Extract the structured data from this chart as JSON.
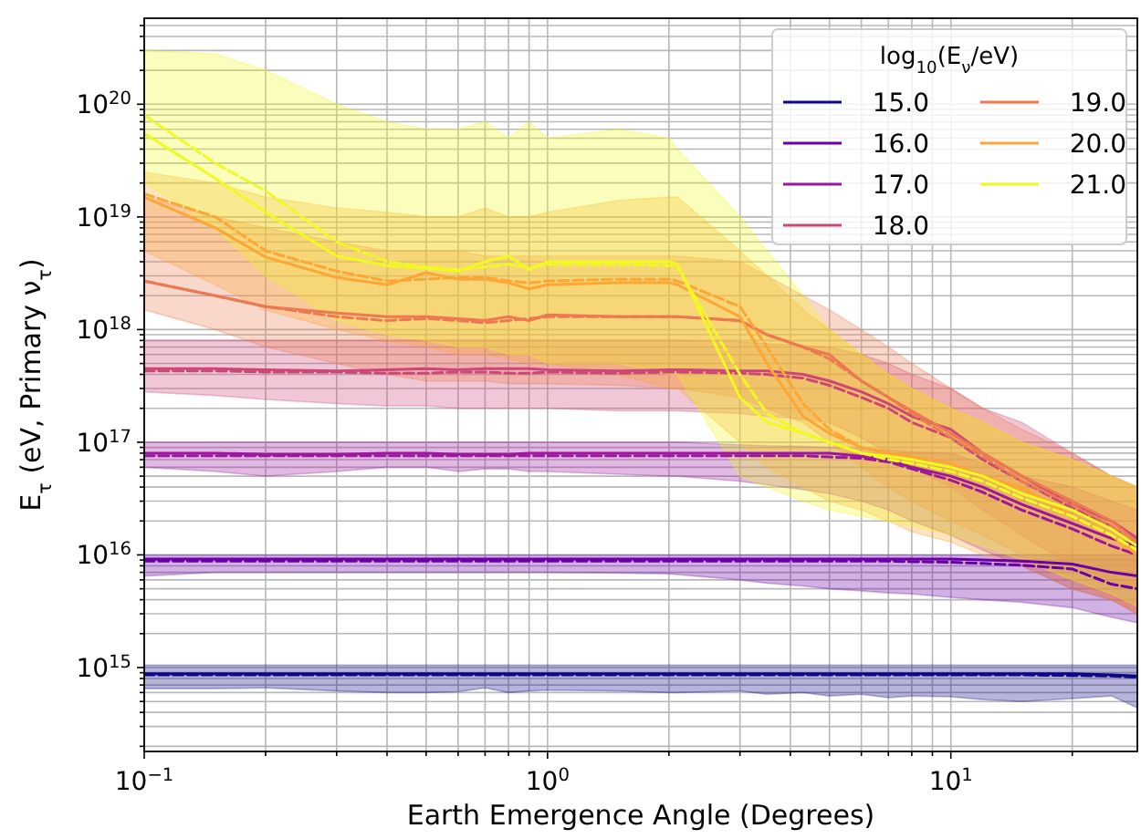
{
  "chart_data": {
    "type": "line",
    "xlabel": "Earth Emergence Angle (Degrees)",
    "ylabel": "E$_{τ}$ (eV, Primary ν$_{τ}$)",
    "legend_title": "log$_{10}$(E$_{ν}$/eV)",
    "legend": "top right",
    "grid": true,
    "log": "xy",
    "xlim": [
      0.1,
      29
    ],
    "ylim": [
      180000000000000.0,
      5.8e+20
    ],
    "xticks": [
      {
        "value": 0.1,
        "label": "10$^{−1}$"
      },
      {
        "value": 0.2,
        "label": null
      },
      {
        "value": 0.3,
        "label": null
      },
      {
        "value": 0.4,
        "label": null
      },
      {
        "value": 0.5,
        "label": null
      },
      {
        "value": 0.6,
        "label": null
      },
      {
        "value": 0.7,
        "label": null
      },
      {
        "value": 0.8,
        "label": null
      },
      {
        "value": 0.9,
        "label": null
      },
      {
        "value": 1,
        "label": "10$^{0}$"
      },
      {
        "value": 2,
        "label": null
      },
      {
        "value": 3,
        "label": null
      },
      {
        "value": 4,
        "label": null
      },
      {
        "value": 5,
        "label": null
      },
      {
        "value": 6,
        "label": null
      },
      {
        "value": 7,
        "label": null
      },
      {
        "value": 8,
        "label": null
      },
      {
        "value": 9,
        "label": null
      },
      {
        "value": 10,
        "label": "10$^{1}$"
      },
      {
        "value": 20,
        "label": null
      }
    ],
    "yticks": [
      {
        "value": 200000000000000.0,
        "label": null
      },
      {
        "value": 300000000000000.0,
        "label": null
      },
      {
        "value": 400000000000000.0,
        "label": null
      },
      {
        "value": 500000000000000.0,
        "label": null
      },
      {
        "value": 600000000000000.0,
        "label": null
      },
      {
        "value": 700000000000000.0,
        "label": null
      },
      {
        "value": 800000000000000.0,
        "label": null
      },
      {
        "value": 900000000000000.0,
        "label": null
      },
      {
        "value": 1000000000000000.0,
        "label": "10$^{15}$"
      },
      {
        "value": 2000000000000000.0,
        "label": null
      },
      {
        "value": 3000000000000000.0,
        "label": null
      },
      {
        "value": 4000000000000000.0,
        "label": null
      },
      {
        "value": 5000000000000000.0,
        "label": null
      },
      {
        "value": 6000000000000000.0,
        "label": null
      },
      {
        "value": 7000000000000000.0,
        "label": null
      },
      {
        "value": 8000000000000000.0,
        "label": null
      },
      {
        "value": 9000000000000000.0,
        "label": null
      },
      {
        "value": 1e+16,
        "label": "10$^{16}$"
      },
      {
        "value": 2e+16,
        "label": null
      },
      {
        "value": 3e+16,
        "label": null
      },
      {
        "value": 4e+16,
        "label": null
      },
      {
        "value": 5e+16,
        "label": null
      },
      {
        "value": 6e+16,
        "label": null
      },
      {
        "value": 7e+16,
        "label": null
      },
      {
        "value": 8e+16,
        "label": null
      },
      {
        "value": 9e+16,
        "label": null
      },
      {
        "value": 1e+17,
        "label": "10$^{17}$"
      },
      {
        "value": 2e+17,
        "label": null
      },
      {
        "value": 3e+17,
        "label": null
      },
      {
        "value": 4e+17,
        "label": null
      },
      {
        "value": 5e+17,
        "label": null
      },
      {
        "value": 6e+17,
        "label": null
      },
      {
        "value": 7e+17,
        "label": null
      },
      {
        "value": 8e+17,
        "label": null
      },
      {
        "value": 9e+17,
        "label": null
      },
      {
        "value": 1e+18,
        "label": "10$^{18}$"
      },
      {
        "value": 2e+18,
        "label": null
      },
      {
        "value": 3e+18,
        "label": null
      },
      {
        "value": 4e+18,
        "label": null
      },
      {
        "value": 5e+18,
        "label": null
      },
      {
        "value": 6e+18,
        "label": null
      },
      {
        "value": 7e+18,
        "label": null
      },
      {
        "value": 8e+18,
        "label": null
      },
      {
        "value": 9e+18,
        "label": null
      },
      {
        "value": 1e+19,
        "label": "10$^{19}$"
      },
      {
        "value": 2e+19,
        "label": null
      },
      {
        "value": 3e+19,
        "label": null
      },
      {
        "value": 4e+19,
        "label": null
      },
      {
        "value": 5e+19,
        "label": null
      },
      {
        "value": 6e+19,
        "label": null
      },
      {
        "value": 7e+19,
        "label": null
      },
      {
        "value": 8e+19,
        "label": null
      },
      {
        "value": 9e+19,
        "label": null
      },
      {
        "value": 1e+20,
        "label": "10$^{20}$"
      },
      {
        "value": 2e+20,
        "label": null
      },
      {
        "value": 3e+20,
        "label": null
      },
      {
        "value": 4e+20,
        "label": null
      },
      {
        "value": 5e+20,
        "label": null
      }
    ],
    "x": [
      0.1,
      0.15,
      0.2,
      0.3,
      0.4,
      0.5,
      0.6,
      0.7,
      0.8,
      0.9,
      1,
      1.5,
      2,
      2.1,
      3,
      3.5,
      4.3,
      5,
      6,
      7,
      8,
      10,
      12,
      15,
      20,
      25,
      29
    ],
    "series": [
      {
        "name": "15.0",
        "color": "#0d0887",
        "values": [
          880000000000000.0,
          880000000000000.0,
          880000000000000.0,
          880000000000000.0,
          880000000000000.0,
          880000000000000.0,
          880000000000000.0,
          880000000000000.0,
          880000000000000.0,
          880000000000000.0,
          880000000000000.0,
          880000000000000.0,
          880000000000000.0,
          880000000000000.0,
          880000000000000.0,
          880000000000000.0,
          880000000000000.0,
          880000000000000.0,
          880000000000000.0,
          880000000000000.0,
          880000000000000.0,
          880000000000000.0,
          880000000000000.0,
          880000000000000.0,
          880000000000000.0,
          860000000000000.0,
          840000000000000.0
        ],
        "lower": [
          650000000000000.0,
          650000000000000.0,
          660000000000000.0,
          620000000000000.0,
          600000000000000.0,
          600000000000000.0,
          610000000000000.0,
          660000000000000.0,
          600000000000000.0,
          620000000000000.0,
          630000000000000.0,
          620000000000000.0,
          600000000000000.0,
          600000000000000.0,
          620000000000000.0,
          580000000000000.0,
          600000000000000.0,
          560000000000000.0,
          580000000000000.0,
          540000000000000.0,
          560000000000000.0,
          550000000000000.0,
          520000000000000.0,
          500000000000000.0,
          530000000000000.0,
          560000000000000.0,
          440000000000000.0
        ],
        "upper": [
          1050000000000000.0,
          1050000000000000.0,
          1050000000000000.0,
          1050000000000000.0,
          1050000000000000.0,
          1050000000000000.0,
          1050000000000000.0,
          1050000000000000.0,
          1050000000000000.0,
          1050000000000000.0,
          1050000000000000.0,
          1050000000000000.0,
          1050000000000000.0,
          1050000000000000.0,
          1050000000000000.0,
          1050000000000000.0,
          1050000000000000.0,
          1050000000000000.0,
          1050000000000000.0,
          1050000000000000.0,
          1050000000000000.0,
          1050000000000000.0,
          1050000000000000.0,
          1050000000000000.0,
          1050000000000000.0,
          1050000000000000.0,
          1050000000000000.0
        ]
      },
      {
        "color": "#0d0887",
        "line_style": "dashed",
        "values": [
          860000000000000.0,
          860000000000000.0,
          860000000000000.0,
          860000000000000.0,
          860000000000000.0,
          860000000000000.0,
          860000000000000.0,
          860000000000000.0,
          860000000000000.0,
          860000000000000.0,
          860000000000000.0,
          860000000000000.0,
          860000000000000.0,
          860000000000000.0,
          860000000000000.0,
          860000000000000.0,
          860000000000000.0,
          860000000000000.0,
          860000000000000.0,
          860000000000000.0,
          860000000000000.0,
          860000000000000.0,
          860000000000000.0,
          860000000000000.0,
          850000000000000.0,
          840000000000000.0,
          820000000000000.0
        ]
      },
      {
        "name": "16.0",
        "color": "#6a00a8",
        "values": [
          9200000000000000.0,
          9200000000000000.0,
          9200000000000000.0,
          9200000000000000.0,
          9200000000000000.0,
          9200000000000000.0,
          9200000000000000.0,
          9200000000000000.0,
          9200000000000000.0,
          9200000000000000.0,
          9200000000000000.0,
          9200000000000000.0,
          9200000000000000.0,
          9200000000000000.0,
          9200000000000000.0,
          9200000000000000.0,
          9200000000000000.0,
          9200000000000000.0,
          9200000000000000.0,
          9200000000000000.0,
          9200000000000000.0,
          9200000000000000.0,
          9000000000000000.0,
          8800000000000000.0,
          8300000000000000.0,
          7000000000000000.0,
          6500000000000000.0
        ],
        "lower": [
          6500000000000000.0,
          7000000000000000.0,
          7000000000000000.0,
          7000000000000000.0,
          7000000000000000.0,
          7000000000000000.0,
          7000000000000000.0,
          7000000000000000.0,
          7000000000000000.0,
          7000000000000000.0,
          7000000000000000.0,
          6900000000000000.0,
          6800000000000000.0,
          6700000000000000.0,
          6000000000000000.0,
          5600000000000000.0,
          5300000000000000.0,
          5000000000000000.0,
          4800000000000000.0,
          4600000000000000.0,
          4500000000000000.0,
          4200000000000000.0,
          4000000000000000.0,
          3800000000000000.0,
          3400000000000000.0,
          2800000000000000.0,
          2500000000000000.0
        ],
        "upper": [
          1e+16,
          1e+16,
          1e+16,
          1e+16,
          1e+16,
          1e+16,
          1e+16,
          1e+16,
          1e+16,
          1e+16,
          1e+16,
          1e+16,
          1e+16,
          1e+16,
          1e+16,
          1e+16,
          1e+16,
          1e+16,
          1e+16,
          1e+16,
          1e+16,
          1e+16,
          1e+16,
          1e+16,
          1e+16,
          1e+16,
          1e+16
        ]
      },
      {
        "color": "#6a00a8",
        "line_style": "dashed",
        "values": [
          8800000000000000.0,
          8800000000000000.0,
          8800000000000000.0,
          8800000000000000.0,
          8800000000000000.0,
          8800000000000000.0,
          8800000000000000.0,
          8800000000000000.0,
          8800000000000000.0,
          8800000000000000.0,
          8800000000000000.0,
          8800000000000000.0,
          8800000000000000.0,
          8800000000000000.0,
          8800000000000000.0,
          8800000000000000.0,
          8800000000000000.0,
          8800000000000000.0,
          8800000000000000.0,
          8800000000000000.0,
          8700000000000000.0,
          8600000000000000.0,
          8400000000000000.0,
          8100000000000000.0,
          7500000000000000.0,
          5500000000000000.0,
          5000000000000000.0
        ]
      },
      {
        "name": "17.0",
        "color": "#9c179e",
        "values": [
          8e+16,
          8e+16,
          7.8e+16,
          7.8e+16,
          8e+16,
          8e+16,
          7.8e+16,
          7.8e+16,
          7.8e+16,
          8e+16,
          8e+16,
          8e+16,
          8e+16,
          8e+16,
          8e+16,
          8e+16,
          8e+16,
          8e+16,
          7.5e+16,
          7e+16,
          6e+16,
          5e+16,
          4e+16,
          2.8e+16,
          1.9e+16,
          1.4e+16,
          1.2e+16
        ],
        "lower": [
          6e+16,
          5.5e+16,
          5e+16,
          5.5e+16,
          6e+16,
          6e+16,
          5.5e+16,
          5.8e+16,
          5.8e+16,
          5.5e+16,
          5.5e+16,
          5.2e+16,
          5e+16,
          5e+16,
          4.5e+16,
          4.2e+16,
          3.8e+16,
          3.5e+16,
          3e+16,
          2.5e+16,
          2e+16,
          1.5e+16,
          1.1e+16,
          8000000000000000.0,
          5000000000000000.0,
          4000000000000000.0,
          3000000000000000.0
        ],
        "upper": [
          1e+17,
          1e+17,
          1e+17,
          1e+17,
          1e+17,
          1e+17,
          1e+17,
          1e+17,
          1e+17,
          1e+17,
          1e+17,
          1e+17,
          1e+17,
          1e+17,
          9.5e+16,
          9.3e+16,
          9.2e+16,
          9e+16,
          8.8e+16,
          8.5e+16,
          8.2e+16,
          8e+16,
          6.5e+16,
          5e+16,
          4e+16,
          3e+16,
          2.5e+16
        ]
      },
      {
        "color": "#9c179e",
        "line_style": "dashed",
        "values": [
          7.6e+16,
          7.6e+16,
          7.6e+16,
          7.6e+16,
          7.6e+16,
          7.6e+16,
          7.6e+16,
          7.6e+16,
          7.6e+16,
          7.6e+16,
          7.6e+16,
          7.6e+16,
          7.6e+16,
          7.6e+16,
          7.6e+16,
          7.6e+16,
          7.6e+16,
          7.4e+16,
          7.2e+16,
          6.7e+16,
          5.8e+16,
          4.6e+16,
          3.6e+16,
          2.5e+16,
          1.7e+16,
          1.2e+16,
          1e+16
        ]
      },
      {
        "name": "18.0",
        "color": "#cc4778",
        "values": [
          4.5e+17,
          4.5e+17,
          4.4e+17,
          4.3e+17,
          4.4e+17,
          4.5e+17,
          4.4e+17,
          4.5e+17,
          4.5e+17,
          4.5e+17,
          4.4e+17,
          4.3e+17,
          4.4e+17,
          4.4e+17,
          4.3e+17,
          4.3e+17,
          4e+17,
          3.5e+17,
          2.8e+17,
          2.2e+17,
          1.7e+17,
          1.3e+17,
          8e+16,
          5e+16,
          2.8e+16,
          2e+16,
          1.4e+16
        ],
        "lower": [
          2.8e+17,
          2.6e+17,
          2.4e+17,
          2.2e+17,
          2.1e+17,
          2.1e+17,
          2e+17,
          2e+17,
          2e+17,
          2e+17,
          2e+17,
          1.9e+17,
          1.9e+17,
          1.9e+17,
          1.8e+17,
          1.7e+17,
          1.6e+17,
          1.5e+17,
          1.1e+17,
          8e+16,
          6e+16,
          4e+16,
          2.5e+16,
          1.5e+16,
          8000000000000000.0,
          6000000000000000.0,
          5000000000000000.0
        ],
        "upper": [
          8e+17,
          8e+17,
          8e+17,
          8e+17,
          8e+17,
          8e+17,
          8e+17,
          8e+17,
          8e+17,
          8e+17,
          8e+17,
          8e+17,
          8e+17,
          8e+17,
          7.8e+17,
          7.5e+17,
          7.2e+17,
          7e+17,
          6e+17,
          5e+17,
          4e+17,
          3e+17,
          2e+17,
          1.5e+17,
          8e+16,
          5e+16,
          4e+16
        ]
      },
      {
        "color": "#cc4778",
        "line_style": "dashed",
        "values": [
          4.3e+17,
          4.3e+17,
          4.2e+17,
          4.2e+17,
          4.1e+17,
          4.1e+17,
          4.2e+17,
          4.2e+17,
          4.1e+17,
          4.1e+17,
          4.2e+17,
          4.1e+17,
          4.2e+17,
          4.2e+17,
          4.1e+17,
          4e+17,
          3.7e+17,
          3.2e+17,
          2.5e+17,
          2e+17,
          1.5e+17,
          1.1e+17,
          7e+16,
          4.5e+16,
          2.6e+16,
          1.8e+16,
          1.2e+16
        ]
      },
      {
        "name": "19.0",
        "color": "#ed7953",
        "values": [
          2.7e+18,
          2e+18,
          1.6e+18,
          1.4e+18,
          1.3e+18,
          1.3e+18,
          1.25e+18,
          1.2e+18,
          1.3e+18,
          1.2e+18,
          1.35e+18,
          1.3e+18,
          1.3e+18,
          1.3e+18,
          1.2e+18,
          9e+17,
          7e+17,
          6e+17,
          3.5e+17,
          2.5e+17,
          1.9e+17,
          1.2e+17,
          8e+16,
          5e+16,
          3e+16,
          2e+16,
          1.3e+16
        ],
        "lower": [
          1.5e+18,
          1e+18,
          7e+17,
          5e+17,
          4e+17,
          3.5e+17,
          3.5e+17,
          3.5e+17,
          3.3e+17,
          3.3e+17,
          3.3e+17,
          3.2e+17,
          3e+17,
          3e+17,
          2.5e+17,
          2e+17,
          1.5e+17,
          1e+17,
          6e+16,
          4e+16,
          3e+16,
          2e+16,
          1.5e+16,
          1e+16,
          6000000000000000.0,
          4000000000000000.0,
          3000000000000000.0
        ],
        "upper": [
          1.5e+19,
          1e+19,
          8e+18,
          6e+18,
          5e+18,
          5e+18,
          5e+18,
          4.5e+18,
          4.5e+18,
          4.5e+18,
          4.5e+18,
          4.5e+18,
          4.5e+18,
          4.5e+18,
          4e+18,
          3e+18,
          2e+18,
          1.5e+18,
          1e+18,
          7e+17,
          5e+17,
          3e+17,
          2e+17,
          1.3e+17,
          8e+16,
          5e+16,
          4e+16
        ]
      },
      {
        "color": "#ed7953",
        "line_style": "dashed",
        "values": [
          2.7e+18,
          2e+18,
          1.6e+18,
          1.3e+18,
          1.2e+18,
          1.25e+18,
          1.2e+18,
          1.15e+18,
          1.2e+18,
          1.25e+18,
          1.3e+18,
          1.3e+18,
          1.3e+18,
          1.3e+18,
          1.2e+18,
          9e+17,
          7e+17,
          5.5e+17,
          3.5e+17,
          2.5e+17,
          1.8e+17,
          1.1e+17,
          7.5e+16,
          4.5e+16,
          2.8e+16,
          1.8e+16,
          1.2e+16
        ]
      },
      {
        "name": "20.0",
        "color": "#fca636",
        "values": [
          1.5e+19,
          8e+18,
          4.4e+18,
          2.9e+18,
          2.5e+18,
          3.2e+18,
          2.8e+18,
          2.8e+18,
          2.6e+18,
          2.3e+18,
          2.5e+18,
          2.6e+18,
          2.6e+18,
          2.5e+18,
          1.3e+18,
          5e+17,
          1.7e+17,
          1.2e+17,
          9e+16,
          8e+16,
          7.5e+16,
          6.5e+16,
          5e+16,
          4e+16,
          2.2e+16,
          1.5e+16,
          1e+16
        ],
        "lower": [
          5e+18,
          2.5e+18,
          1.5e+18,
          1e+18,
          8e+17,
          7e+17,
          6e+17,
          6e+17,
          5.5e+17,
          5e+17,
          5e+17,
          4e+17,
          3e+17,
          3e+17,
          1e+17,
          6e+16,
          4e+16,
          3e+16,
          2.5e+16,
          2e+16,
          1.6e+16,
          1.3e+16,
          1e+16,
          8000000000000000.0,
          5000000000000000.0,
          4000000000000000.0,
          3000000000000000.0
        ],
        "upper": [
          2.5e+19,
          2e+19,
          1.5e+19,
          1.2e+19,
          1.1e+19,
          1e+19,
          1e+19,
          1.2e+19,
          1e+19,
          1e+19,
          1.1e+19,
          1.4e+19,
          1.5e+19,
          1.5e+19,
          5e+18,
          3e+18,
          1.5e+18,
          1e+18,
          6e+17,
          4e+17,
          3e+17,
          2e+17,
          1.5e+17,
          1e+17,
          7e+16,
          5e+16,
          4e+16
        ]
      },
      {
        "color": "#fca636",
        "line_style": "dashed",
        "values": [
          1.6e+19,
          1e+19,
          5e+18,
          3.3e+18,
          2.7e+18,
          2.8e+18,
          2.9e+18,
          2.9e+18,
          2.7e+18,
          2.6e+18,
          2.7e+18,
          2.8e+18,
          2.8e+18,
          2.7e+18,
          1.6e+18,
          7e+17,
          2.2e+17,
          1.3e+17,
          9e+16,
          8e+16,
          7e+16,
          6e+16,
          5e+16,
          3.8e+16,
          2.2e+16,
          1.5e+16,
          1e+16
        ]
      },
      {
        "name": "21.0",
        "color": "#f0f921",
        "values": [
          5.5e+19,
          2.2e+19,
          1.1e+19,
          4.5e+18,
          3.7e+18,
          3.5e+18,
          3.3e+18,
          4e+18,
          4.5e+18,
          3.4e+18,
          4e+18,
          4e+18,
          4e+18,
          3.8e+18,
          2.5e+17,
          1.5e+17,
          1.2e+17,
          1e+17,
          8e+16,
          7.5e+16,
          7e+16,
          6e+16,
          5e+16,
          3.5e+16,
          2.5e+16,
          1.7e+16,
          1.2e+16
        ],
        "lower": [
          2e+19,
          8e+18,
          3e+18,
          1.2e+18,
          9e+17,
          8e+17,
          7e+17,
          7e+17,
          6e+17,
          6e+17,
          5e+17,
          5e+17,
          4e+17,
          4e+17,
          5e+16,
          4e+16,
          3e+16,
          2.5e+16,
          2.2e+16,
          2e+16,
          1.8e+16,
          1.5e+16,
          1.2e+16,
          9000000000000000.0,
          6000000000000000.0,
          4500000000000000.0,
          3500000000000000.0
        ],
        "upper": [
          3e+20,
          2.8e+20,
          2e+20,
          1e+20,
          7e+19,
          6e+19,
          6e+19,
          7e+19,
          5e+19,
          7e+19,
          5e+19,
          6e+19,
          5e+19,
          4e+19,
          1e+19,
          5e+18,
          2e+18,
          1e+18,
          6e+17,
          4e+17,
          3e+17,
          2e+17,
          1.5e+17,
          1e+17,
          7e+16,
          5e+16,
          4e+16
        ]
      },
      {
        "color": "#f0f921",
        "line_style": "dashed",
        "values": [
          8e+19,
          3e+19,
          1.7e+19,
          6e+18,
          4e+18,
          3.6e+18,
          3.4e+18,
          3.6e+18,
          3.8e+18,
          3.5e+18,
          3.8e+18,
          3.8e+18,
          3.7e+18,
          3.6e+18,
          4e+17,
          1.8e+17,
          1.2e+17,
          1e+17,
          8e+16,
          7e+16,
          6.5e+16,
          5.5e+16,
          4.5e+16,
          3.2e+16,
          2.2e+16,
          1.5e+16,
          1.1e+16
        ]
      }
    ]
  }
}
